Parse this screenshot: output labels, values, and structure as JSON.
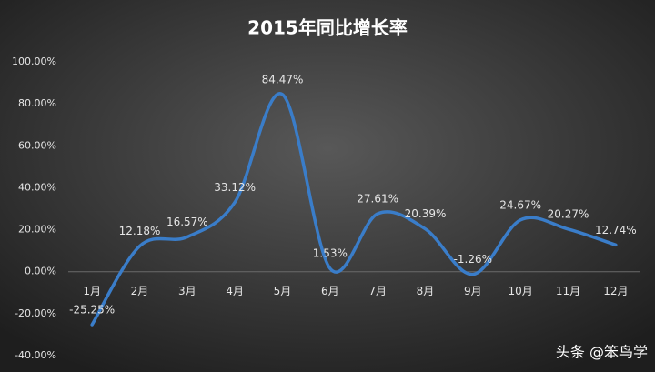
{
  "chart_data": {
    "type": "line",
    "title": "2015年同比增长率",
    "categories": [
      "1月",
      "2月",
      "3月",
      "4月",
      "5月",
      "6月",
      "7月",
      "8月",
      "9月",
      "10月",
      "11月",
      "12月"
    ],
    "series": [
      {
        "name": "同比增长率",
        "color": "#3a7dc9",
        "values": [
          -25.25,
          12.18,
          16.57,
          33.12,
          84.47,
          1.53,
          27.61,
          20.39,
          -1.26,
          24.67,
          20.27,
          12.74
        ],
        "value_labels": [
          "-25.25%",
          "12.18%",
          "16.57%",
          "33.12%",
          "84.47%",
          "1.53%",
          "27.61%",
          "20.39%",
          "-1.26%",
          "24.67%",
          "20.27%",
          "12.74%"
        ]
      }
    ],
    "ylim": [
      -40,
      100
    ],
    "yticks": [
      {
        "value": -40,
        "label": "-40.00%"
      },
      {
        "value": -20,
        "label": "-20.00%"
      },
      {
        "value": 0,
        "label": "0.00%"
      },
      {
        "value": 20,
        "label": "20.00%"
      },
      {
        "value": 40,
        "label": "40.00%"
      },
      {
        "value": 60,
        "label": "60.00%"
      },
      {
        "value": 80,
        "label": "80.00%"
      },
      {
        "value": 100,
        "label": "100.00%"
      }
    ],
    "smooth": true
  },
  "watermark": "头条 @笨鸟学"
}
